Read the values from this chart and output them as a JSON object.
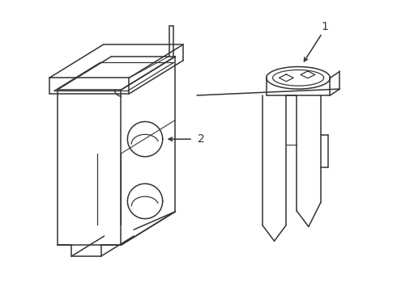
{
  "bg_color": "#ffffff",
  "line_color": "#333333",
  "line_width": 1.1,
  "fig_width": 4.9,
  "fig_height": 3.6,
  "dpi": 100,
  "label_fontsize": 10
}
